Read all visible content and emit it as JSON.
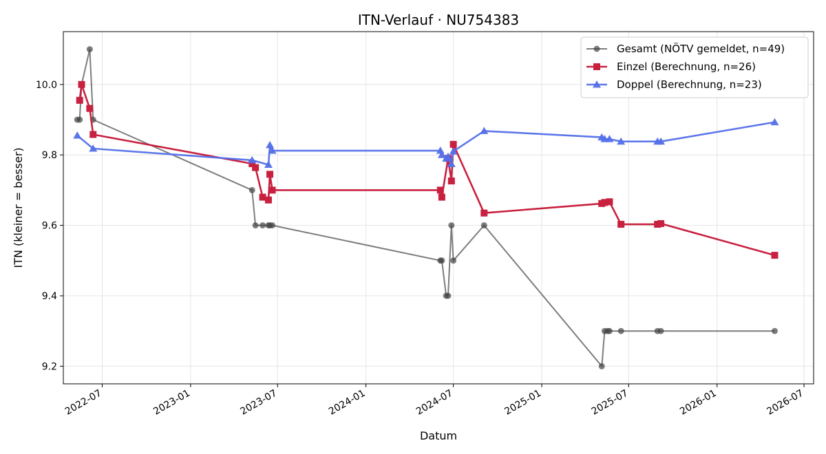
{
  "chart_data": {
    "type": "line",
    "title": "ITN-Verlauf · NU754383",
    "xlabel": "Datum",
    "ylabel": "ITN  (kleiner = besser)",
    "xlim": [
      "2022-04-11",
      "2026-07-21"
    ],
    "ylim": [
      9.15,
      10.15
    ],
    "x_ticks": [
      "2022-07",
      "2023-01",
      "2023-07",
      "2024-01",
      "2024-07",
      "2025-01",
      "2025-07",
      "2026-01",
      "2026-07"
    ],
    "y_ticks": [
      "9.2",
      "9.4",
      "9.6",
      "9.8",
      "10.0"
    ],
    "grid": true,
    "legend_position": "top-right",
    "series": [
      {
        "name": "Gesamt (NÖTV gemeldet, n=49)",
        "color": "#444444",
        "marker": "circle",
        "points": [
          {
            "x": "2022-05-10",
            "y": 9.9
          },
          {
            "x": "2022-05-15",
            "y": 9.9
          },
          {
            "x": "2022-05-19",
            "y": 10.0
          },
          {
            "x": "2022-06-05",
            "y": 10.1
          },
          {
            "x": "2022-06-12",
            "y": 9.9
          },
          {
            "x": "2023-05-09",
            "y": 9.7
          },
          {
            "x": "2023-05-16",
            "y": 9.6
          },
          {
            "x": "2023-05-31",
            "y": 9.6
          },
          {
            "x": "2023-06-12",
            "y": 9.6
          },
          {
            "x": "2023-06-15",
            "y": 9.6
          },
          {
            "x": "2023-06-20",
            "y": 9.6
          },
          {
            "x": "2024-06-04",
            "y": 9.5
          },
          {
            "x": "2024-06-07",
            "y": 9.5
          },
          {
            "x": "2024-06-16",
            "y": 9.4
          },
          {
            "x": "2024-06-20",
            "y": 9.4
          },
          {
            "x": "2024-06-27",
            "y": 9.6
          },
          {
            "x": "2024-07-01",
            "y": 9.5
          },
          {
            "x": "2024-09-03",
            "y": 9.6
          },
          {
            "x": "2025-05-06",
            "y": 9.2
          },
          {
            "x": "2025-05-12",
            "y": 9.3
          },
          {
            "x": "2025-05-18",
            "y": 9.3
          },
          {
            "x": "2025-05-22",
            "y": 9.3
          },
          {
            "x": "2025-06-15",
            "y": 9.3
          },
          {
            "x": "2025-08-30",
            "y": 9.3
          },
          {
            "x": "2025-09-06",
            "y": 9.3
          },
          {
            "x": "2026-05-01",
            "y": 9.3
          }
        ]
      },
      {
        "name": "Einzel (Berechnung, n=26)",
        "color": "#c8203f",
        "marker": "square",
        "points": [
          {
            "x": "2022-05-15",
            "y": 9.955
          },
          {
            "x": "2022-05-19",
            "y": 10.0
          },
          {
            "x": "2022-06-05",
            "y": 9.932
          },
          {
            "x": "2022-06-12",
            "y": 9.858
          },
          {
            "x": "2023-05-09",
            "y": 9.775
          },
          {
            "x": "2023-05-16",
            "y": 9.764
          },
          {
            "x": "2023-05-31",
            "y": 9.68
          },
          {
            "x": "2023-06-12",
            "y": 9.672
          },
          {
            "x": "2023-06-15",
            "y": 9.745
          },
          {
            "x": "2023-06-20",
            "y": 9.7
          },
          {
            "x": "2024-06-04",
            "y": 9.7
          },
          {
            "x": "2024-06-07",
            "y": 9.68
          },
          {
            "x": "2024-06-20",
            "y": 9.79
          },
          {
            "x": "2024-06-27",
            "y": 9.726
          },
          {
            "x": "2024-07-01",
            "y": 9.83
          },
          {
            "x": "2024-09-03",
            "y": 9.635
          },
          {
            "x": "2025-05-06",
            "y": 9.662
          },
          {
            "x": "2025-05-12",
            "y": 9.665
          },
          {
            "x": "2025-05-22",
            "y": 9.667
          },
          {
            "x": "2025-06-15",
            "y": 9.603
          },
          {
            "x": "2025-08-30",
            "y": 9.603
          },
          {
            "x": "2025-09-06",
            "y": 9.605
          },
          {
            "x": "2026-05-01",
            "y": 9.515
          }
        ]
      },
      {
        "name": "Doppel (Berechnung, n=23)",
        "color": "#5470e8",
        "marker": "triangle",
        "points": [
          {
            "x": "2022-05-10",
            "y": 9.855
          },
          {
            "x": "2022-06-12",
            "y": 9.818
          },
          {
            "x": "2023-05-09",
            "y": 9.785
          },
          {
            "x": "2023-06-12",
            "y": 9.772
          },
          {
            "x": "2023-06-15",
            "y": 9.828
          },
          {
            "x": "2023-06-20",
            "y": 9.812
          },
          {
            "x": "2024-06-04",
            "y": 9.812
          },
          {
            "x": "2024-06-07",
            "y": 9.8
          },
          {
            "x": "2024-06-16",
            "y": 9.79
          },
          {
            "x": "2024-06-20",
            "y": 9.795
          },
          {
            "x": "2024-06-27",
            "y": 9.774
          },
          {
            "x": "2024-07-01",
            "y": 9.81
          },
          {
            "x": "2024-09-03",
            "y": 9.868
          },
          {
            "x": "2025-05-06",
            "y": 9.85
          },
          {
            "x": "2025-05-12",
            "y": 9.845
          },
          {
            "x": "2025-05-22",
            "y": 9.845
          },
          {
            "x": "2025-06-15",
            "y": 9.838
          },
          {
            "x": "2025-08-30",
            "y": 9.838
          },
          {
            "x": "2025-09-06",
            "y": 9.838
          },
          {
            "x": "2026-05-01",
            "y": 9.893
          }
        ]
      }
    ]
  }
}
